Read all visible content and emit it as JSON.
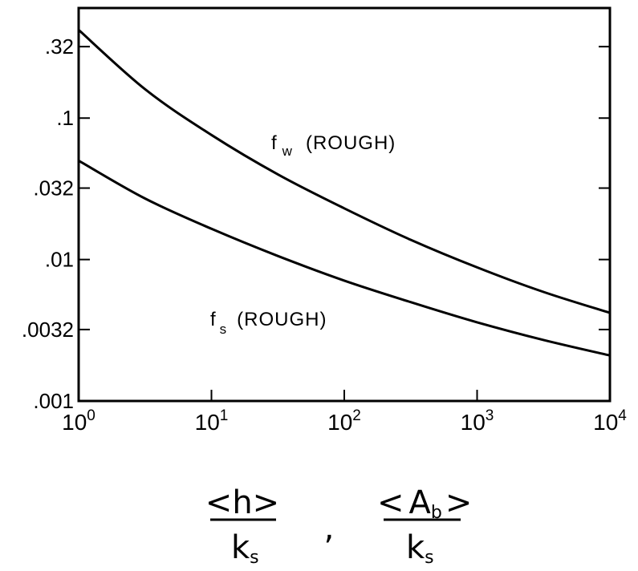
{
  "chart_data": {
    "type": "line",
    "x_scale": "log",
    "y_scale": "log",
    "xlim": [
      1,
      10000
    ],
    "ylim": [
      0.001,
      0.6
    ],
    "grid": false,
    "legend": "none",
    "x_ticks": [
      {
        "value": 1,
        "base": "10",
        "exp": "0"
      },
      {
        "value": 10,
        "base": "10",
        "exp": "1"
      },
      {
        "value": 100,
        "base": "10",
        "exp": "2"
      },
      {
        "value": 1000,
        "base": "10",
        "exp": "3"
      },
      {
        "value": 10000,
        "base": "10",
        "exp": "4"
      }
    ],
    "y_ticks": [
      {
        "value": 0.32,
        "label": ".32"
      },
      {
        "value": 0.1,
        "label": ".1"
      },
      {
        "value": 0.032,
        "label": ".032"
      },
      {
        "value": 0.01,
        "label": ".01"
      },
      {
        "value": 0.0032,
        "label": ".0032"
      },
      {
        "value": 0.001,
        "label": ".001"
      }
    ],
    "x_label": {
      "left_num": "<h>",
      "left_den_main": "k",
      "left_den_sub": "s",
      "separator": ",",
      "right_num_open": "<",
      "right_num_main": "A",
      "right_num_sub": "b",
      "right_num_close": ">",
      "right_den_main": "k",
      "right_den_sub": "s"
    },
    "series": [
      {
        "name_main": "f",
        "name_sub": "w",
        "name_tail": "(ROUGH)",
        "x": [
          1,
          3.16,
          10,
          31.6,
          100,
          316,
          1000,
          3160,
          10000
        ],
        "y": [
          0.42,
          0.16,
          0.076,
          0.04,
          0.023,
          0.0138,
          0.0088,
          0.0059,
          0.0042
        ]
      },
      {
        "name_main": "f",
        "name_sub": "s",
        "name_tail": "(ROUGH)",
        "x": [
          1,
          3.16,
          10,
          31.6,
          100,
          316,
          1000,
          3160,
          10000
        ],
        "y": [
          0.05,
          0.027,
          0.0165,
          0.0106,
          0.0071,
          0.005,
          0.0036,
          0.0027,
          0.0021
        ]
      }
    ]
  }
}
